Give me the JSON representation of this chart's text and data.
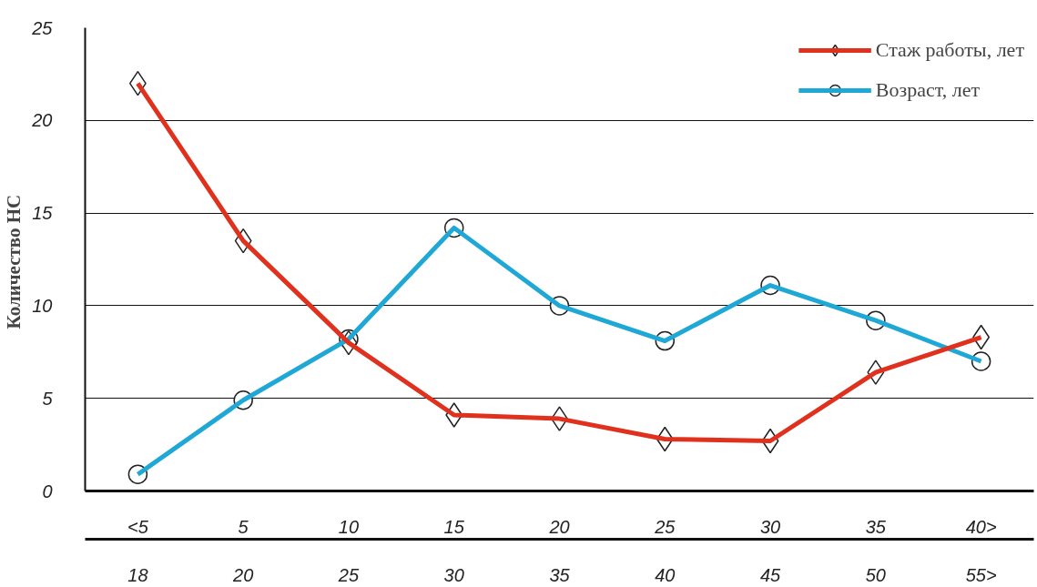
{
  "chart_data": {
    "type": "line",
    "ylabel": "Количество  НС",
    "categories": [
      "<5",
      "5",
      "10",
      "15",
      "20",
      "25",
      "30",
      "35",
      "40>"
    ],
    "annotations": [
      "18",
      "20",
      "25",
      "30",
      "35",
      "40",
      "45",
      "50",
      "55>"
    ],
    "ylim": [
      0,
      25
    ],
    "yticks": [
      0,
      5,
      10,
      15,
      20,
      25
    ],
    "grid": "y",
    "legend": "top right",
    "line_style": "solid",
    "series": [
      {
        "name": "Стаж работы, лет",
        "color": "#e0301e",
        "marker": "diamond",
        "values": [
          22.0,
          13.5,
          8.0,
          4.1,
          3.9,
          2.8,
          2.7,
          6.4,
          8.3
        ]
      },
      {
        "name": "Возраст, лет",
        "color": "#1fa8d6",
        "marker": "circle",
        "values": [
          0.9,
          4.9,
          8.2,
          14.2,
          10.0,
          8.1,
          11.1,
          9.2,
          7.0
        ]
      }
    ]
  }
}
